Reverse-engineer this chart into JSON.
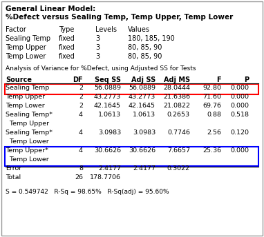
{
  "title_line1": "General Linear Model:",
  "title_line2": "%Defect versus Sealing Temp, Temp Upper, Temp Lower",
  "factor_header": [
    "Factor",
    "Type",
    "Levels",
    "Values"
  ],
  "factors": [
    [
      "Sealing Temp",
      "fixed",
      "3",
      "180, 185, 190"
    ],
    [
      "Temp Upper",
      "fixed",
      "3",
      "80, 85, 90"
    ],
    [
      "Temp Lower",
      "fixed",
      "3",
      "80, 85, 90"
    ]
  ],
  "anova_label": "Analysis of Variance for %Defect, using Adjusted SS for Tests",
  "anova_header": [
    "Source",
    "DF",
    "Seq SS",
    "Adj SS",
    "Adj MS",
    "F",
    "P"
  ],
  "anova_rows": [
    [
      "Sealing Temp",
      "2",
      "56.0889",
      "56.0889",
      "28.0444",
      "92.80",
      "0.000"
    ],
    [
      "Temp Upper",
      "2",
      "43.2773",
      "43.2773",
      "21.6386",
      "71.60",
      "0.000"
    ],
    [
      "Temp Lower",
      "2",
      "42.1645",
      "42.1645",
      "21.0822",
      "69.76",
      "0.000"
    ],
    [
      "Sealing Temp*",
      "4",
      "1.0613",
      "1.0613",
      "0.2653",
      "0.88",
      "0.518"
    ],
    [
      "  Temp Upper",
      "",
      "",
      "",
      "",
      "",
      ""
    ],
    [
      "Sealing Temp*",
      "4",
      "3.0983",
      "3.0983",
      "0.7746",
      "2.56",
      "0.120"
    ],
    [
      "  Temp Lower",
      "",
      "",
      "",
      "",
      "",
      ""
    ],
    [
      "Temp Upper*",
      "4",
      "30.6626",
      "30.6626",
      "7.6657",
      "25.36",
      "0.000"
    ],
    [
      "  Temp Lower",
      "",
      "",
      "",
      "",
      "",
      ""
    ],
    [
      "Error",
      "8",
      "2.4177",
      "2.4177",
      "0.3022",
      "",
      ""
    ],
    [
      "Total",
      "26",
      "178.7706",
      "",
      "",
      "",
      ""
    ]
  ],
  "red_rows": [
    0
  ],
  "blue_rows": [
    7,
    8
  ],
  "footer": "S = 0.549742   R-Sq = 98.65%   R-Sq(adj) = 95.60%",
  "bg_color": "#ffffff",
  "outer_border_color": "#999999"
}
